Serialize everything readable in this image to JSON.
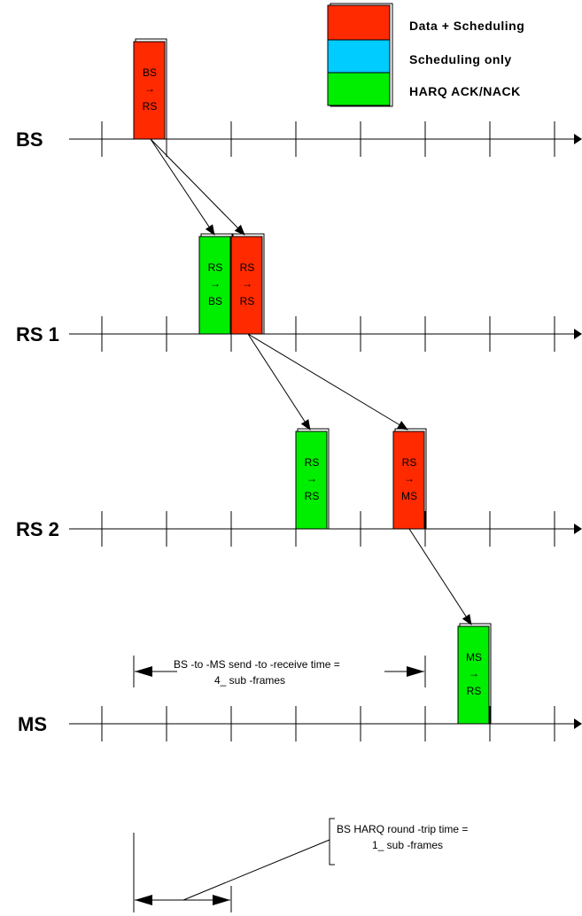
{
  "legend": {
    "items": [
      {
        "label": "Data + Scheduling",
        "color": "#ff2a00"
      },
      {
        "label": "Scheduling only",
        "color": "#00ccff"
      },
      {
        "label": "HARQ ACK/NACK",
        "color": "#00ee00"
      }
    ]
  },
  "lanes": [
    {
      "id": "bs",
      "label": "BS"
    },
    {
      "id": "rs1",
      "label": "RS 1"
    },
    {
      "id": "rs2",
      "label": "RS 2"
    },
    {
      "id": "ms",
      "label": "MS"
    }
  ],
  "blocks": [
    {
      "id": "bs-rs",
      "kind": "data",
      "line1": "BS",
      "arrow": "→",
      "line2": "RS"
    },
    {
      "id": "rs-bs",
      "kind": "harq",
      "line1": "RS",
      "arrow": "→",
      "line2": "BS"
    },
    {
      "id": "rs-rs-1",
      "kind": "data",
      "line1": "RS",
      "arrow": "→",
      "line2": "RS"
    },
    {
      "id": "rs-rs-2",
      "kind": "harq",
      "line1": "RS",
      "arrow": "→",
      "line2": "RS"
    },
    {
      "id": "rs-ms",
      "kind": "data",
      "line1": "RS",
      "arrow": "→",
      "line2": "MS"
    },
    {
      "id": "ms-rs",
      "kind": "harq",
      "line1": "MS",
      "arrow": "→",
      "line2": "RS"
    }
  ],
  "annotations": {
    "send_receive_line1": "BS -to -MS send  -to -receive time    =",
    "send_receive_line2": "4_  sub -frames",
    "round_trip_line1": "BS HARQ round  -trip time    =",
    "round_trip_line2": "1_  sub -frames"
  }
}
